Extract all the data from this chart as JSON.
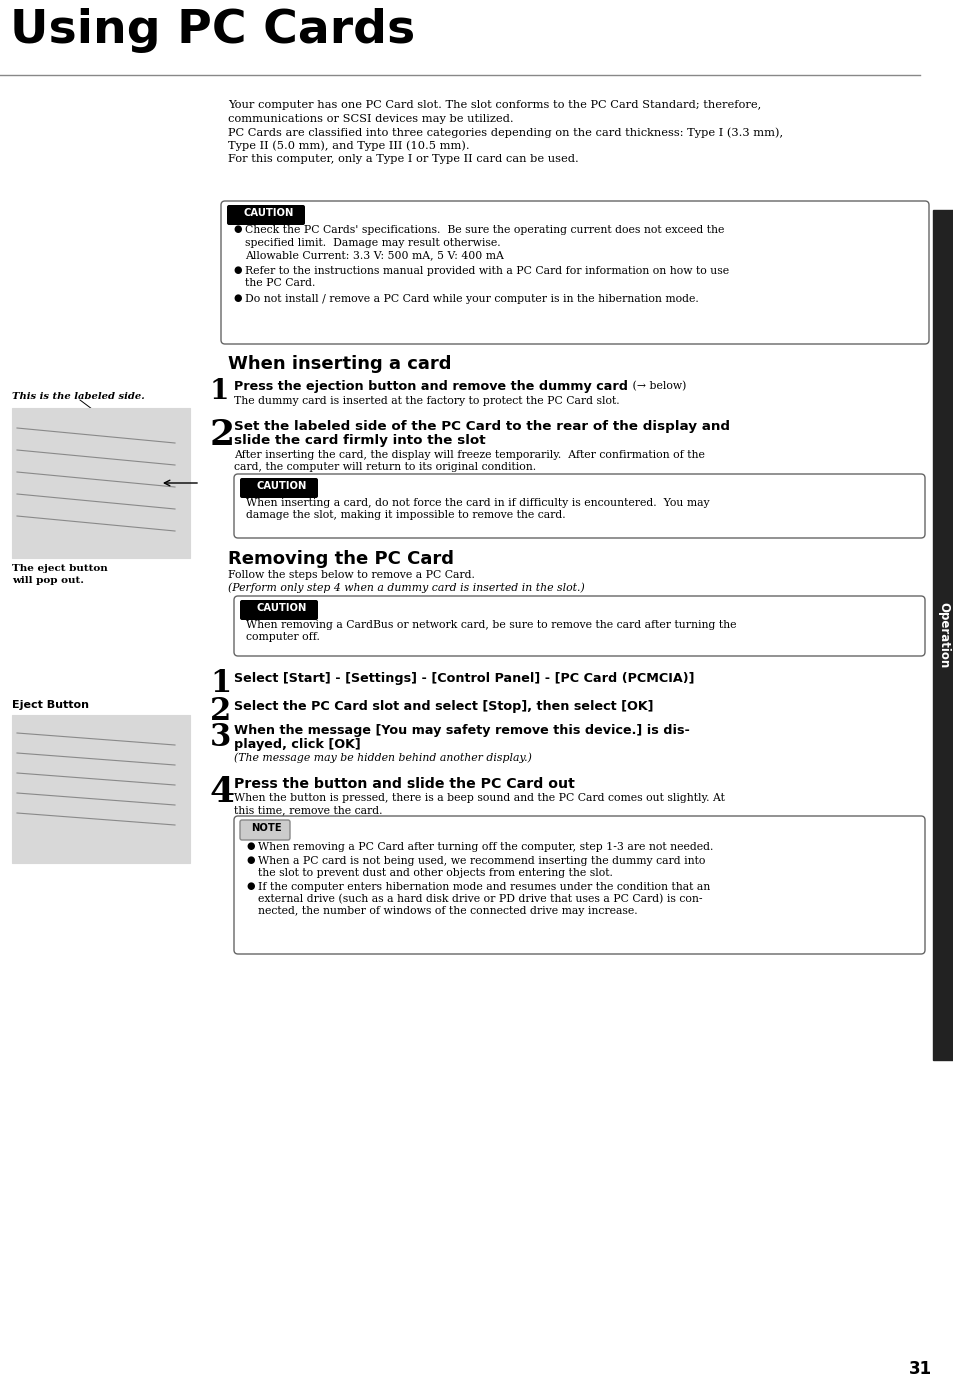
{
  "page_title": "Using PC Cards",
  "page_number": "31",
  "bg_color": "#ffffff",
  "title_fontsize": 34,
  "body_fontsize": 8.2,
  "small_fontsize": 7.8,
  "caption_fontsize": 7.5,
  "section_header_fontsize": 13,
  "step_number_fontsize": 20,
  "step_bold_fontsize": 9.2,
  "intro_text_lines": [
    "Your computer has one PC Card slot. The slot conforms to the PC Card Standard; therefore,",
    "communications or SCSI devices may be utilized.",
    "PC Cards are classified into three categories depending on the card thickness: Type I (3.3 mm),",
    "Type II (5.0 mm), and Type III (10.5 mm).",
    "For this computer, only a Type I or Type II card can be used."
  ],
  "caution1_items": [
    [
      "Check the PC Cards' specifications.  Be sure the operating current does not exceed the",
      "specified limit.  Damage may result otherwise.",
      "Allowable Current: 3.3 V: 500 mA, 5 V: 400 mA"
    ],
    [
      "Refer to the instructions manual provided with a PC Card for information on how to use",
      "the PC Card."
    ],
    [
      "Do not install / remove a PC Card while your computer is in the hibernation mode."
    ]
  ],
  "section1_title": "When inserting a card",
  "left_label1_line1": "This is the labeled side.",
  "left_label2_line1": "The eject button",
  "left_label2_line2": "will pop out.",
  "step1_num": "1",
  "step1_bold": "Press the ejection button and remove the dummy card",
  "step1_suffix": " (→ below)",
  "step1_sub": "The dummy card is inserted at the factory to protect the PC Card slot.",
  "step2_num": "2",
  "step2_bold_line1": "Set the labeled side of the PC Card to the rear of the display and",
  "step2_bold_line2": "slide the card firmly into the slot",
  "step2_sub_line1": "After inserting the card, the display will freeze temporarily.  After confirmation of the",
  "step2_sub_line2": "card, the computer will return to its original condition.",
  "caution2_line1": "When inserting a card, do not force the card in if difficulty is encountered.  You may",
  "caution2_line2": "damage the slot, making it impossible to remove the card.",
  "section2_title": "Removing the PC Card",
  "remove_line1": "Follow the steps below to remove a PC Card.",
  "remove_line2": "(Perform only step 4 when a dummy card is inserted in the slot.)",
  "caution3_line1": "When removing a CardBus or network card, be sure to remove the card after turning the",
  "caution3_line2": "computer off.",
  "left_label3": "Eject Button",
  "rstep1_num": "1",
  "rstep1_bold": "Select [Start] - [Settings] - [Control Panel] - [PC Card (PCMCIA)]",
  "rstep2_num": "2",
  "rstep2_bold": "Select the PC Card slot and select [Stop], then select [OK]",
  "rstep3_num": "3",
  "rstep3_bold_line1": "When the message [You may safety remove this device.] is dis-",
  "rstep3_bold_line2": "played, click [OK]",
  "rstep3_sub": "(The message may be hidden behind another display.)",
  "rstep4_num": "4",
  "rstep4_bold": "Press the button and slide the PC Card out",
  "rstep4_sub_line1": "When the button is pressed, there is a beep sound and the PC Card comes out slightly. At",
  "rstep4_sub_line2": "this time, remove the card.",
  "note_line0": "When removing a PC Card after turning off the computer, step 1-3 are not needed.",
  "note_line1a": "When a PC card is not being used, we recommend inserting the dummy card into",
  "note_line1b": "the slot to prevent dust and other objects from entering the slot.",
  "note_line2a": "If the computer enters hibernation mode and resumes under the condition that an",
  "note_line2b": "external drive (such as a hard disk drive or PD drive that uses a PC Card) is con-",
  "note_line2c": "nected, the number of windows of the connected drive may increase.",
  "operation_sidebar": "Operation"
}
